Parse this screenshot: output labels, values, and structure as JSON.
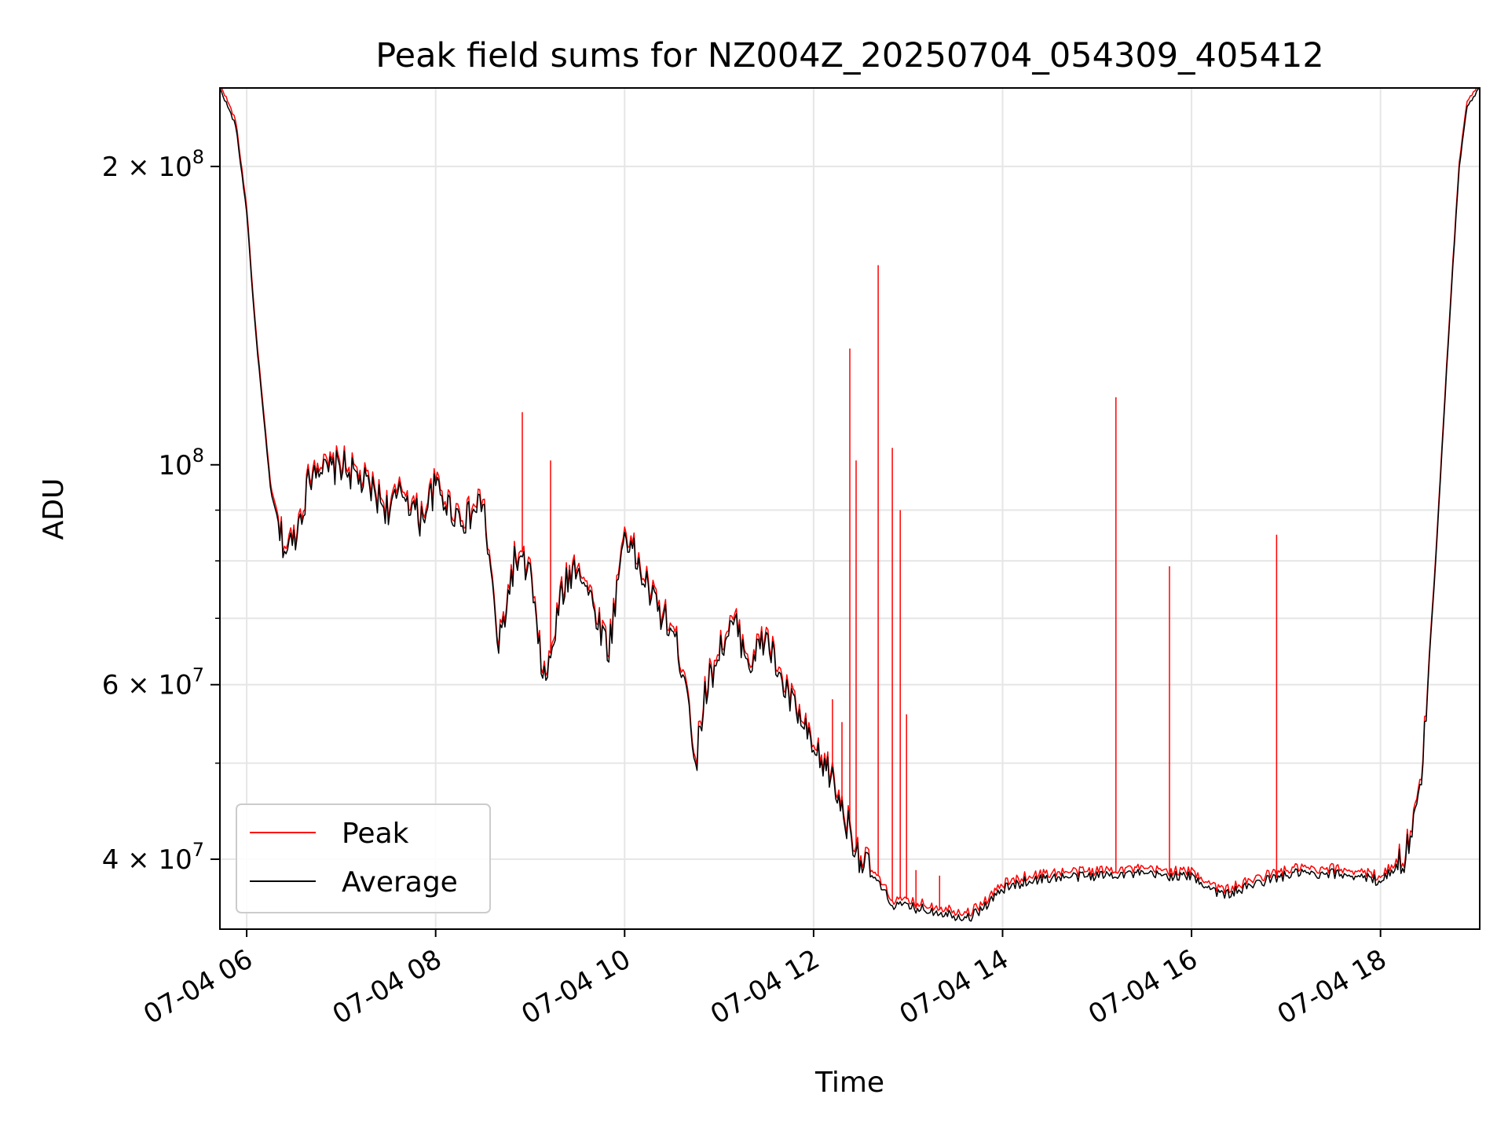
{
  "chart_data": {
    "type": "line",
    "title": "Peak field sums for NZ004Z_20250704_054309_405412",
    "xlabel": "Time",
    "ylabel": "ADU",
    "x_range": [
      "2025-07-04 05:43",
      "2025-07-04 19:03"
    ],
    "ylim": [
      34000000,
      240000000
    ],
    "y_scale": "log",
    "grid": true,
    "legend_position": "lower-left",
    "x_ticks": [
      "07-04 06",
      "07-04 08",
      "07-04 10",
      "07-04 12",
      "07-04 14",
      "07-04 16",
      "07-04 18"
    ],
    "y_tick_labels": [
      {
        "value": 40000000,
        "mantissa": "4",
        "exp": "7"
      },
      {
        "value": 60000000,
        "mantissa": "6",
        "exp": "7"
      },
      {
        "value": 100000000,
        "mantissa": "",
        "exp": "8"
      },
      {
        "value": 200000000,
        "mantissa": "2",
        "exp": "8"
      }
    ],
    "series": [
      {
        "name": "Average",
        "color": "#000000",
        "points": [
          [
            "05:43",
            240000000
          ],
          [
            "05:53",
            220000000
          ],
          [
            "06:00",
            180000000
          ],
          [
            "06:05",
            140000000
          ],
          [
            "06:10",
            115000000
          ],
          [
            "06:15",
            95000000
          ],
          [
            "06:20",
            86000000
          ],
          [
            "06:25",
            82000000
          ],
          [
            "06:30",
            84000000
          ],
          [
            "06:35",
            90000000
          ],
          [
            "06:40",
            97000000
          ],
          [
            "06:45",
            101000000
          ],
          [
            "06:50",
            98000000
          ],
          [
            "07:00",
            100000000
          ],
          [
            "07:10",
            97000000
          ],
          [
            "07:20",
            94000000
          ],
          [
            "07:30",
            90000000
          ],
          [
            "07:40",
            94000000
          ],
          [
            "07:50",
            88000000
          ],
          [
            "08:00",
            95000000
          ],
          [
            "08:10",
            90000000
          ],
          [
            "08:20",
            88000000
          ],
          [
            "08:30",
            92000000
          ],
          [
            "08:40",
            65000000
          ],
          [
            "08:50",
            80000000
          ],
          [
            "09:00",
            78000000
          ],
          [
            "09:05",
            66000000
          ],
          [
            "09:10",
            60000000
          ],
          [
            "09:20",
            74000000
          ],
          [
            "09:30",
            80000000
          ],
          [
            "09:40",
            72000000
          ],
          [
            "09:50",
            65000000
          ],
          [
            "10:00",
            86000000
          ],
          [
            "10:10",
            78000000
          ],
          [
            "10:20",
            72000000
          ],
          [
            "10:30",
            68000000
          ],
          [
            "10:40",
            60000000
          ],
          [
            "10:45",
            49000000
          ],
          [
            "10:50",
            58000000
          ],
          [
            "11:00",
            65000000
          ],
          [
            "11:10",
            69000000
          ],
          [
            "11:20",
            63000000
          ],
          [
            "11:30",
            67000000
          ],
          [
            "11:40",
            60000000
          ],
          [
            "11:50",
            56000000
          ],
          [
            "12:00",
            51000000
          ],
          [
            "12:10",
            49000000
          ],
          [
            "12:20",
            44000000
          ],
          [
            "12:30",
            40000000
          ],
          [
            "12:40",
            38000000
          ],
          [
            "12:50",
            36000000
          ],
          [
            "13:00",
            35800000
          ],
          [
            "13:10",
            35600000
          ],
          [
            "13:20",
            35400000
          ],
          [
            "13:30",
            35100000
          ],
          [
            "13:40",
            35000000
          ],
          [
            "13:50",
            36000000
          ],
          [
            "14:00",
            37300000
          ],
          [
            "14:15",
            38000000
          ],
          [
            "14:30",
            38300000
          ],
          [
            "14:45",
            38400000
          ],
          [
            "15:00",
            38500000
          ],
          [
            "15:15",
            38700000
          ],
          [
            "15:30",
            38600000
          ],
          [
            "15:45",
            38500000
          ],
          [
            "16:00",
            38400000
          ],
          [
            "16:10",
            37600000
          ],
          [
            "16:20",
            36800000
          ],
          [
            "16:30",
            37200000
          ],
          [
            "16:45",
            38000000
          ],
          [
            "17:00",
            38500000
          ],
          [
            "17:10",
            38800000
          ],
          [
            "17:20",
            38400000
          ],
          [
            "17:30",
            38700000
          ],
          [
            "17:45",
            38500000
          ],
          [
            "18:00",
            38000000
          ],
          [
            "18:15",
            40000000
          ],
          [
            "18:25",
            46000000
          ],
          [
            "18:30",
            60000000
          ],
          [
            "18:35",
            80000000
          ],
          [
            "18:40",
            110000000
          ],
          [
            "18:45",
            150000000
          ],
          [
            "18:50",
            200000000
          ],
          [
            "18:55",
            230000000
          ],
          [
            "19:03",
            240000000
          ]
        ]
      },
      {
        "name": "Peak",
        "color": "#ff0000",
        "spikes": [
          [
            "08:55",
            113000000
          ],
          [
            "09:13",
            101000000
          ],
          [
            "12:12",
            58000000
          ],
          [
            "12:18",
            55000000
          ],
          [
            "12:23",
            131000000
          ],
          [
            "12:27",
            101000000
          ],
          [
            "12:41",
            159000000
          ],
          [
            "12:50",
            104000000
          ],
          [
            "12:55",
            90000000
          ],
          [
            "12:59",
            56000000
          ],
          [
            "13:05",
            39000000
          ],
          [
            "13:20",
            38500000
          ],
          [
            "15:12",
            117000000
          ],
          [
            "15:46",
            79000000
          ],
          [
            "16:54",
            85000000
          ]
        ]
      }
    ]
  }
}
